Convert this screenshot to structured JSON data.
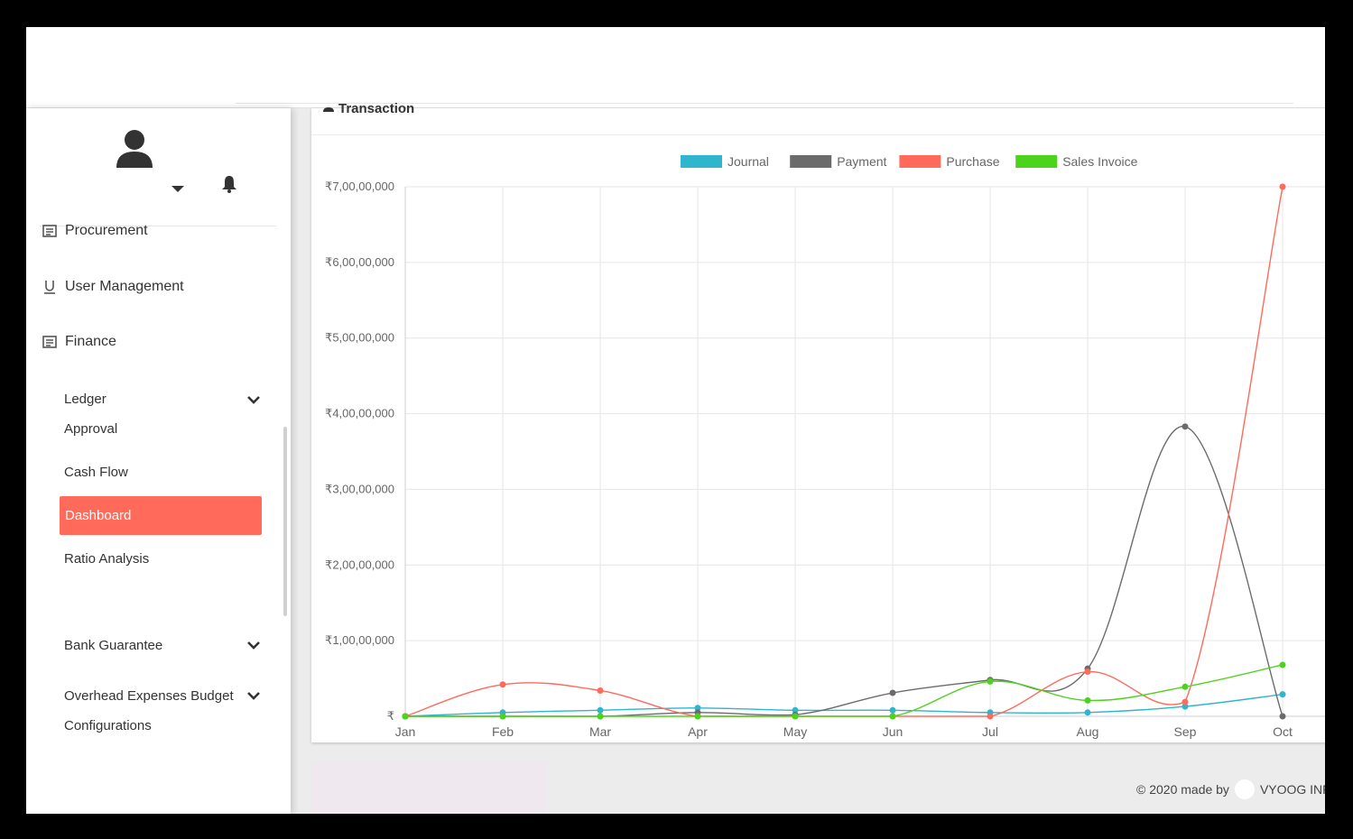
{
  "sidebar": {
    "menu": {
      "procurement": "Procurement",
      "user_management": "User Management",
      "finance": "Finance"
    },
    "finance_sub": {
      "ledger": "Ledger",
      "approval": "Approval",
      "cash_flow": "Cash Flow",
      "dashboard": "Dashboard",
      "ratio_analysis": "Ratio Analysis"
    },
    "bank_guarantee": "Bank Guarantee",
    "overhead": "Overhead Expenses Budget",
    "configurations": "Configurations"
  },
  "card": {
    "title": "Transaction"
  },
  "footer": {
    "made_by": "© 2020 made by",
    "company": "VYOOG INFO"
  },
  "colors": {
    "accent": "#ff6a5a",
    "journal": "#2fb5cc",
    "payment": "#6b6b6b",
    "purchase": "#ff6a5a",
    "sales": "#4cd31c"
  },
  "chart_data": {
    "type": "line",
    "categories": [
      "Jan",
      "Feb",
      "Mar",
      "Apr",
      "May",
      "Jun",
      "Jul",
      "Aug",
      "Sep",
      "Oct"
    ],
    "y_ticks": [
      "₹",
      "₹1,00,00,000",
      "₹2,00,00,000",
      "₹3,00,00,000",
      "₹4,00,00,000",
      "₹5,00,00,000",
      "₹6,00,00,000",
      "₹7,00,00,000"
    ],
    "ylim": [
      0,
      70000000
    ],
    "legend_position": "top",
    "grid": true,
    "series": [
      {
        "name": "Journal",
        "color": "#2fb5cc",
        "values": [
          0,
          500000,
          800000,
          1100000,
          800000,
          800000,
          500000,
          500000,
          1300000,
          2900000
        ]
      },
      {
        "name": "Payment",
        "color": "#6b6b6b",
        "values": [
          0,
          0,
          0,
          500000,
          200000,
          3100000,
          4800000,
          6300000,
          38300000,
          0
        ]
      },
      {
        "name": "Purchase",
        "color": "#ff6a5a",
        "values": [
          0,
          4200000,
          3400000,
          0,
          0,
          0,
          0,
          5900000,
          1900000,
          70000000
        ]
      },
      {
        "name": "Sales Invoice",
        "color": "#4cd31c",
        "values": [
          0,
          0,
          0,
          0,
          0,
          0,
          4600000,
          2100000,
          3900000,
          6800000
        ]
      }
    ]
  }
}
